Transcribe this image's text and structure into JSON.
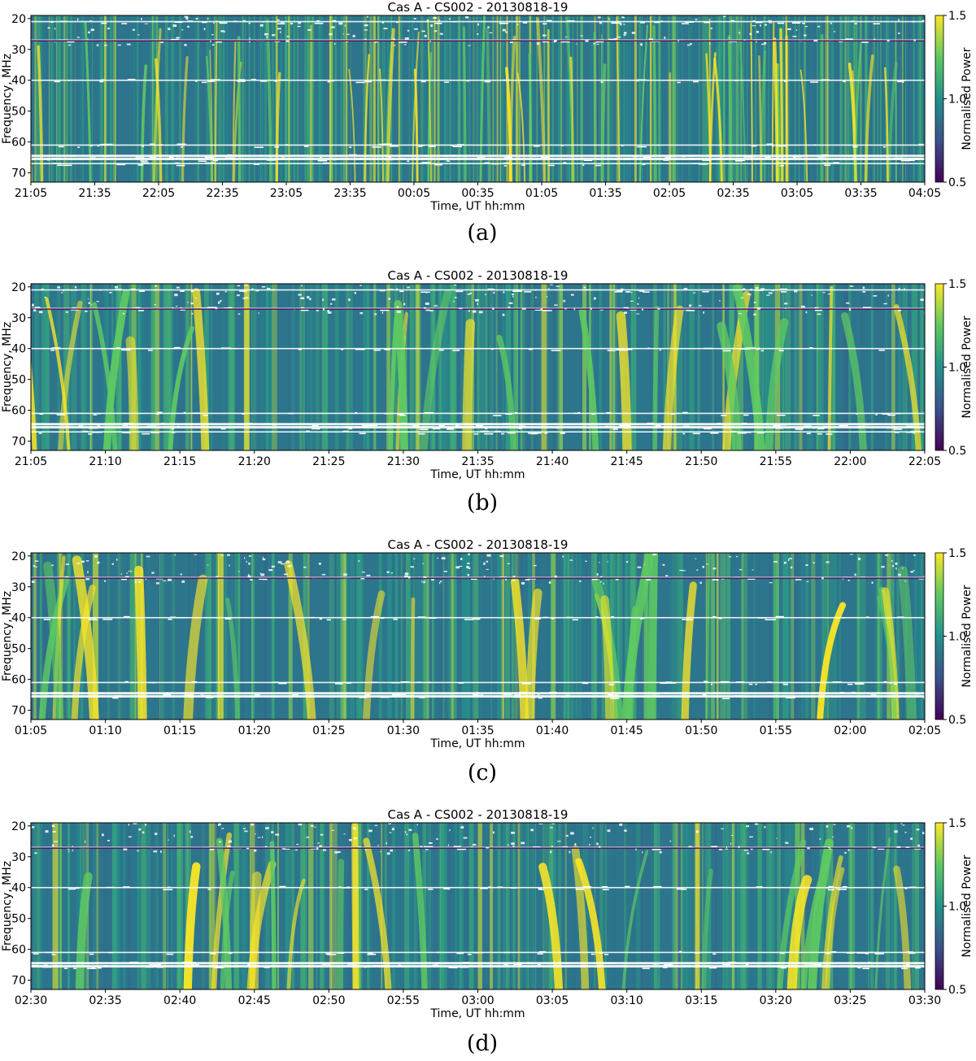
{
  "figure": {
    "panels": [
      {
        "caption": "(a)",
        "chart_index": 0
      },
      {
        "caption": "(b)",
        "chart_index": 1
      },
      {
        "caption": "(c)",
        "chart_index": 2
      },
      {
        "caption": "(d)",
        "chart_index": 3
      }
    ],
    "colormap": {
      "name": "viridis",
      "stops": [
        "#440154",
        "#3b528b",
        "#21918c",
        "#5ec962",
        "#fde725"
      ]
    },
    "rfi_color": "#ffffff"
  },
  "chart_data": [
    {
      "type": "heatmap",
      "title": "Cas A - CS002 - 20130818-19",
      "xlabel": "Time, UT hh:mm",
      "ylabel": "Frequency, MHz",
      "colorbar_label": "Normalised Power",
      "x_ticks": [
        "21:05",
        "21:35",
        "22:05",
        "22:35",
        "23:05",
        "23:35",
        "00:05",
        "00:35",
        "01:05",
        "01:35",
        "02:05",
        "02:35",
        "03:05",
        "03:35",
        "04:05"
      ],
      "y_ticks": [
        20,
        30,
        40,
        50,
        60,
        70
      ],
      "y_range": [
        19,
        73
      ],
      "x_range_minutes": [
        0,
        420
      ],
      "colorbar_ticks": [
        "0.5",
        "1.0",
        "1.5"
      ],
      "clim": [
        0.5,
        1.5
      ],
      "rfi_bands_mhz": [
        21,
        27,
        40,
        61,
        64.5,
        65.5,
        67
      ]
    },
    {
      "type": "heatmap",
      "title": "Cas A - CS002 - 20130818-19",
      "xlabel": "Time, UT hh:mm",
      "ylabel": "Frequency, MHz",
      "colorbar_label": "Normalised Power",
      "x_ticks": [
        "21:05",
        "21:10",
        "21:15",
        "21:20",
        "21:25",
        "21:30",
        "21:35",
        "21:40",
        "21:45",
        "21:50",
        "21:55",
        "22:00",
        "22:05"
      ],
      "y_ticks": [
        20,
        30,
        40,
        50,
        60,
        70
      ],
      "y_range": [
        19,
        73
      ],
      "x_range_minutes": [
        0,
        60
      ],
      "colorbar_ticks": [
        "0.5",
        "1.0",
        "1.5"
      ],
      "clim": [
        0.5,
        1.5
      ],
      "rfi_bands_mhz": [
        21,
        27,
        40,
        61,
        64.5,
        65.5,
        67
      ]
    },
    {
      "type": "heatmap",
      "title": "Cas A - CS002 - 20130818-19",
      "xlabel": "Time, UT hh:mm",
      "ylabel": "Frequency, MHz",
      "colorbar_label": "Normalised Power",
      "x_ticks": [
        "01:05",
        "01:10",
        "01:15",
        "01:20",
        "01:25",
        "01:30",
        "01:35",
        "01:40",
        "01:45",
        "01:50",
        "01:55",
        "02:00",
        "02:05"
      ],
      "y_ticks": [
        20,
        30,
        40,
        50,
        60,
        70
      ],
      "y_range": [
        19,
        73
      ],
      "x_range_minutes": [
        0,
        60
      ],
      "colorbar_ticks": [
        "0.5",
        "1.0",
        "1.5"
      ],
      "clim": [
        0.5,
        1.5
      ],
      "rfi_bands_mhz": [
        27,
        40,
        61,
        64.5,
        65.5
      ]
    },
    {
      "type": "heatmap",
      "title": "Cas A - CS002 - 20130818-19",
      "xlabel": "Time, UT hh:mm",
      "ylabel": "Frequency, MHz",
      "colorbar_label": "Normalised Power",
      "x_ticks": [
        "02:30",
        "02:35",
        "02:40",
        "02:45",
        "02:50",
        "02:55",
        "03:00",
        "03:05",
        "03:10",
        "03:15",
        "03:20",
        "03:25",
        "03:30"
      ],
      "y_ticks": [
        20,
        30,
        40,
        50,
        60,
        70
      ],
      "y_range": [
        19,
        73
      ],
      "x_range_minutes": [
        0,
        60
      ],
      "colorbar_ticks": [
        "0.5",
        "1.0",
        "1.5"
      ],
      "clim": [
        0.5,
        1.5
      ],
      "rfi_bands_mhz": [
        27,
        40,
        61,
        64.5,
        65.5
      ]
    }
  ]
}
